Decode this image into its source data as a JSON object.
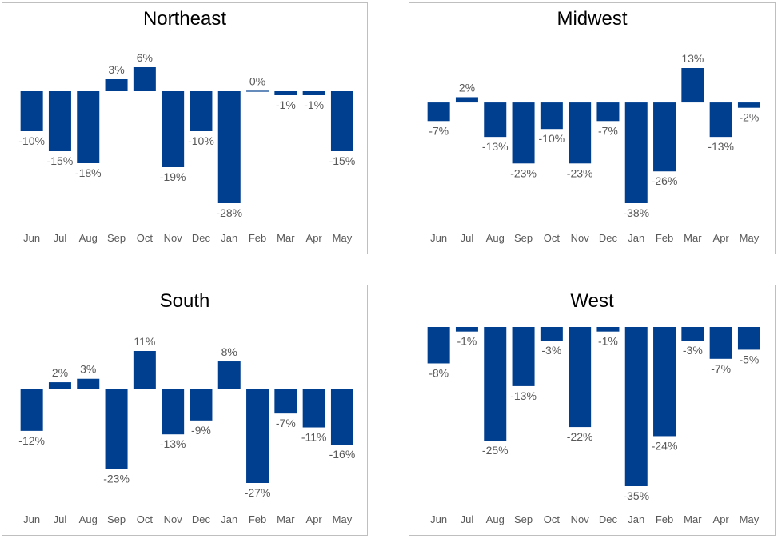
{
  "colors": {
    "bar": "#003f8f",
    "label": "#595959",
    "tick": "#595959",
    "border": "#bfbfbf"
  },
  "chart_data": [
    {
      "type": "bar",
      "title": "Northeast",
      "categories": [
        "Jun",
        "Jul",
        "Aug",
        "Sep",
        "Oct",
        "Nov",
        "Dec",
        "Jan",
        "Feb",
        "Mar",
        "Apr",
        "May"
      ],
      "values": [
        -10,
        -15,
        -18,
        3,
        6,
        -19,
        -10,
        -28,
        0,
        -1,
        -1,
        -15
      ],
      "data_labels": [
        "-10%",
        "-15%",
        "-18%",
        "3%",
        "6%",
        "-19%",
        "-10%",
        "-28%",
        "0%",
        "-1%",
        "-1%",
        "-15%"
      ],
      "ylim": [
        -28,
        6
      ],
      "grid": false,
      "legend": "none"
    },
    {
      "type": "bar",
      "title": "Midwest",
      "categories": [
        "Jun",
        "Jul",
        "Aug",
        "Sep",
        "Oct",
        "Nov",
        "Dec",
        "Jan",
        "Feb",
        "Mar",
        "Apr",
        "May"
      ],
      "values": [
        -7,
        2,
        -13,
        -23,
        -10,
        -23,
        -7,
        -38,
        -26,
        13,
        -13,
        -2
      ],
      "data_labels": [
        "-7%",
        "2%",
        "-13%",
        "-23%",
        "-10%",
        "-23%",
        "-7%",
        "-38%",
        "-26%",
        "13%",
        "-13%",
        "-2%"
      ],
      "ylim": [
        -38,
        13
      ],
      "grid": false,
      "legend": "none"
    },
    {
      "type": "bar",
      "title": "South",
      "categories": [
        "Jun",
        "Jul",
        "Aug",
        "Sep",
        "Oct",
        "Nov",
        "Dec",
        "Jan",
        "Feb",
        "Mar",
        "Apr",
        "May"
      ],
      "values": [
        -12,
        2,
        3,
        -23,
        11,
        -13,
        -9,
        8,
        -27,
        -7,
        -11,
        -16
      ],
      "data_labels": [
        "-12%",
        "2%",
        "3%",
        "-23%",
        "11%",
        "-13%",
        "-9%",
        "8%",
        "-27%",
        "-7%",
        "-11%",
        "-16%"
      ],
      "ylim": [
        -27,
        11
      ],
      "grid": false,
      "legend": "none"
    },
    {
      "type": "bar",
      "title": "West",
      "categories": [
        "Jun",
        "Jul",
        "Aug",
        "Sep",
        "Oct",
        "Nov",
        "Dec",
        "Jan",
        "Feb",
        "Mar",
        "Apr",
        "May"
      ],
      "values": [
        -8,
        -1,
        -25,
        -13,
        -3,
        -22,
        -1,
        -35,
        -24,
        -3,
        -7,
        -5
      ],
      "data_labels": [
        "-8%",
        "-1%",
        "-25%",
        "-13%",
        "-3%",
        "-22%",
        "-1%",
        "-35%",
        "-24%",
        "-3%",
        "-7%",
        "-5%"
      ],
      "ylim": [
        -35,
        0
      ],
      "grid": false,
      "legend": "none"
    }
  ]
}
